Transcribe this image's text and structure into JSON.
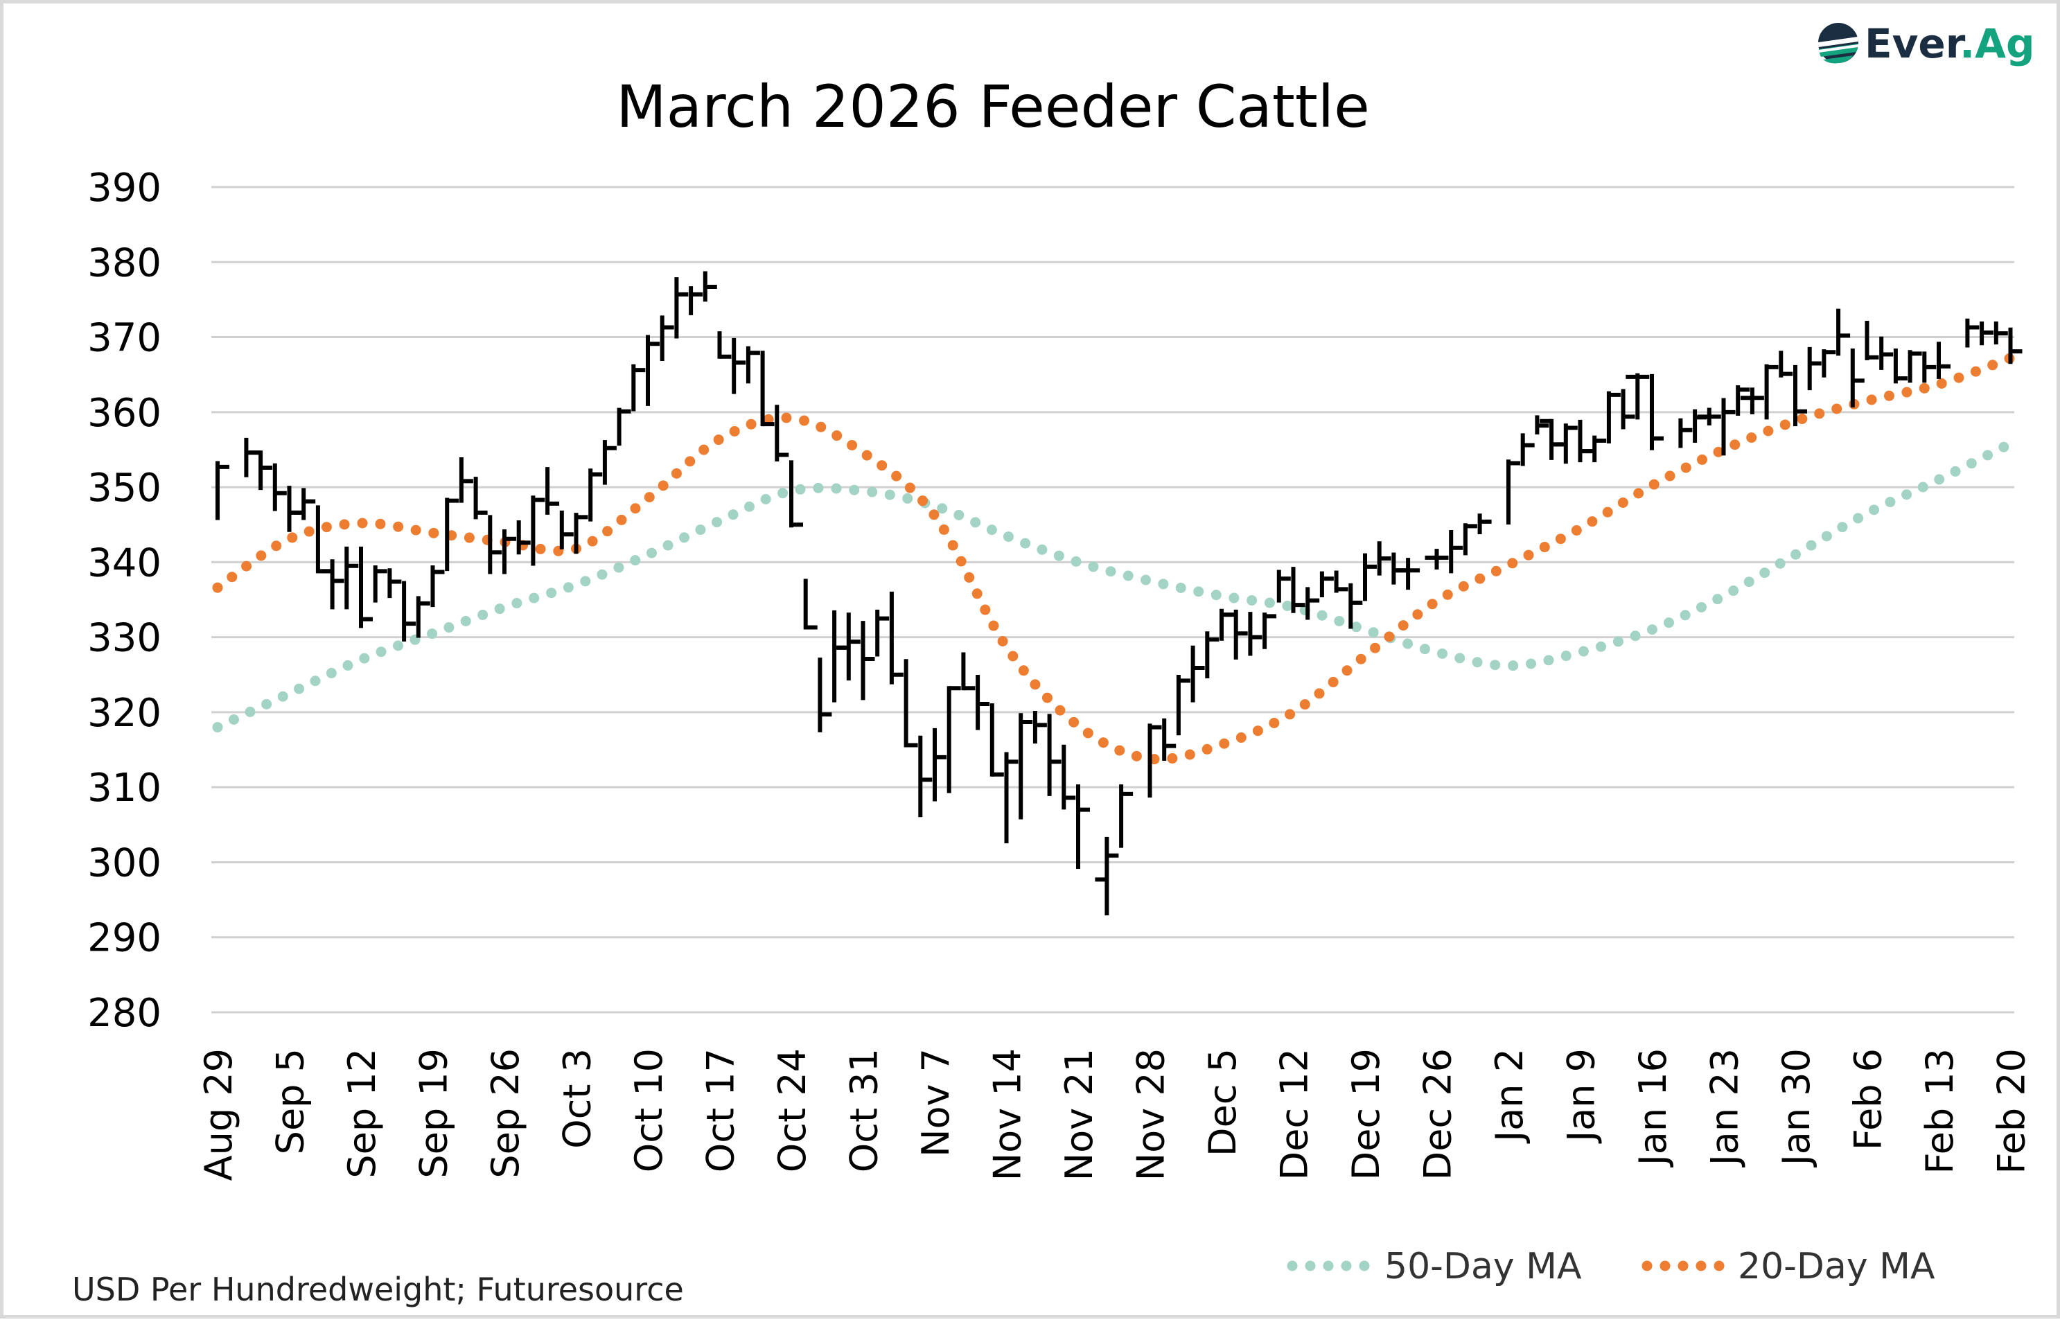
{
  "logo": {
    "parts": [
      "Ever",
      ".Ag"
    ],
    "colors": {
      "dark": "#1b2d40",
      "accent": "#13a37e"
    }
  },
  "chart_data": {
    "type": "ohlc",
    "title": "March 2026 Feeder Cattle",
    "footnote": "USD Per Hundredweight; Futuresource",
    "ylim": [
      280,
      390
    ],
    "y_ticks": [
      390,
      380,
      370,
      360,
      350,
      340,
      330,
      320,
      310,
      300,
      290,
      280
    ],
    "grid": true,
    "legend_position": "bottom-right",
    "x_ticks": [
      "Aug 29",
      "Sep 5",
      "Sep 12",
      "Sep 19",
      "Sep 26",
      "Oct 3",
      "Oct 10",
      "Oct 17",
      "Oct 24",
      "Oct 31",
      "Nov 7",
      "Nov 14",
      "Nov 21",
      "Nov 28",
      "Dec 5",
      "Dec 12",
      "Dec 19",
      "Dec 26",
      "Jan 2",
      "Jan 9",
      "Jan 16",
      "Jan 23",
      "Jan 30",
      "Feb 6",
      "Feb 13",
      "Feb 20"
    ],
    "bar_fields": [
      "open",
      "high",
      "low",
      "close"
    ],
    "bars_by_week_mon_to_fri": [
      [
        null,
        null,
        null,
        null,
        [
          null,
          353.2,
          345.9,
          352.7
        ]
      ],
      [
        null,
        [
          null,
          356.3,
          351.6,
          354.6
        ],
        [
          354.6,
          354.6,
          349.9,
          352.6
        ],
        [
          null,
          352.9,
          347.1,
          349.2
        ],
        [
          null,
          349.9,
          344.3,
          346.6
        ]
      ],
      [
        [
          346.6,
          349.6,
          345.9,
          348.1
        ],
        [
          null,
          347.3,
          338.8,
          338.8
        ],
        [
          338.8,
          340.1,
          334.0,
          337.5
        ],
        [
          null,
          341.8,
          334.0,
          339.5
        ],
        [
          null,
          341.8,
          331.5,
          332.4
        ]
      ],
      [
        [
          null,
          339.3,
          334.9,
          338.8
        ],
        [
          null,
          338.9,
          335.5,
          337.4
        ],
        [
          null,
          337.2,
          329.7,
          331.8
        ],
        [
          null,
          335.2,
          330.2,
          334.5
        ],
        [
          null,
          339.3,
          334.3,
          338.7
        ]
      ],
      [
        [
          null,
          348.3,
          339.1,
          348.2
        ],
        [
          null,
          353.7,
          348.2,
          350.8
        ],
        [
          null,
          351.1,
          346.0,
          346.6
        ],
        [
          null,
          346.0,
          338.7,
          341.3
        ],
        [
          null,
          344.1,
          338.7,
          343.1
        ]
      ],
      [
        [
          null,
          345.3,
          341.3,
          342.6
        ],
        [
          null,
          348.6,
          339.8,
          348.3
        ],
        [
          null,
          352.4,
          346.6,
          347.8
        ],
        [
          null,
          346.6,
          342.0,
          343.7
        ],
        [
          null,
          346.3,
          341.4,
          346.0
        ]
      ],
      [
        [
          null,
          352.2,
          345.7,
          351.7
        ],
        [
          null,
          356.0,
          350.6,
          355.2
        ],
        [
          null,
          360.3,
          355.8,
          360.1
        ],
        [
          null,
          366.1,
          360.4,
          365.6
        ],
        [
          null,
          370.0,
          361.1,
          369.1
        ]
      ],
      [
        [
          null,
          372.6,
          367.1,
          371.3
        ],
        [
          null,
          377.7,
          370.1,
          375.7
        ],
        [
          null,
          376.5,
          373.2,
          375.7
        ],
        [
          null,
          378.5,
          375.0,
          376.7
        ],
        [
          null,
          370.5,
          367.4,
          367.4
        ]
      ],
      [
        [
          null,
          369.6,
          362.7,
          366.6
        ],
        [
          null,
          368.5,
          364.1,
          367.9
        ],
        [
          null,
          367.9,
          358.4,
          358.4
        ],
        [
          null,
          360.7,
          353.7,
          354.3
        ],
        [
          null,
          353.3,
          344.9,
          345.0
        ]
      ],
      [
        [
          null,
          337.5,
          331.3,
          331.3
        ],
        [
          null,
          327.0,
          317.6,
          319.7
        ],
        [
          null,
          333.3,
          321.6,
          328.6
        ],
        [
          328.6,
          333.0,
          324.5,
          329.4
        ],
        [
          null,
          331.9,
          321.9,
          327.1
        ]
      ],
      [
        [
          null,
          333.4,
          327.7,
          332.5
        ],
        [
          null,
          335.8,
          324.0,
          325.0
        ],
        [
          null,
          326.8,
          315.6,
          315.6
        ],
        [
          null,
          316.6,
          306.3,
          311.0
        ],
        [
          null,
          317.6,
          308.4,
          314.0
        ]
      ],
      [
        [
          null,
          323.2,
          309.5,
          323.2
        ],
        [
          null,
          327.7,
          323.2,
          323.2
        ],
        [
          null,
          324.7,
          317.9,
          321.1
        ],
        [
          null,
          320.9,
          311.7,
          311.7
        ],
        [
          null,
          314.4,
          302.8,
          313.4
        ]
      ],
      [
        [
          null,
          319.6,
          306.0,
          318.7
        ],
        [
          null,
          319.9,
          316.1,
          318.3
        ],
        [
          null,
          319.5,
          309.1,
          313.4
        ],
        [
          null,
          315.4,
          307.3,
          308.6
        ],
        [
          null,
          310.1,
          299.4,
          307.0
        ]
      ],
      [
        null,
        [
          297.7,
          303.1,
          293.2,
          300.9
        ],
        [
          null,
          310.1,
          302.2,
          309.1
        ],
        null,
        [
          null,
          318.2,
          308.9,
          318.0
        ]
      ],
      [
        [
          null,
          318.9,
          313.8,
          315.5
        ],
        [
          null,
          324.7,
          317.2,
          324.2
        ],
        [
          null,
          328.6,
          321.6,
          325.9
        ],
        [
          null,
          330.5,
          324.8,
          329.7
        ],
        [
          null,
          333.5,
          329.8,
          333.0
        ]
      ],
      [
        [
          333.0,
          333.4,
          327.3,
          330.5
        ],
        [
          null,
          333.1,
          327.8,
          330.0
        ],
        [
          null,
          333.0,
          328.7,
          332.8
        ],
        [
          null,
          338.7,
          334.9,
          337.8
        ],
        [
          null,
          339.1,
          333.5,
          334.3
        ]
      ],
      [
        [
          null,
          336.4,
          332.6,
          334.9
        ],
        [
          null,
          338.5,
          335.6,
          337.8
        ],
        [
          null,
          338.6,
          336.2,
          336.4
        ],
        [
          null,
          336.9,
          331.4,
          334.6
        ],
        [
          null,
          340.9,
          335.1,
          339.4
        ]
      ],
      [
        [
          null,
          342.5,
          338.5,
          340.5
        ],
        [
          null,
          341.0,
          337.3,
          338.9
        ],
        [
          338.9,
          340.3,
          336.6,
          338.9
        ],
        null,
        [
          340.6,
          341.5,
          339.3,
          340.6
        ]
      ],
      [
        [
          null,
          344.0,
          338.8,
          341.9
        ],
        [
          null,
          344.9,
          341.2,
          344.8
        ],
        [
          null,
          346.2,
          344.0,
          345.4
        ],
        null,
        [
          null,
          353.4,
          345.3,
          353.2
        ]
      ],
      [
        [
          null,
          356.9,
          353.1,
          355.6
        ],
        [
          null,
          359.3,
          357.3,
          358.2
        ],
        [
          358.8,
          358.8,
          353.9,
          355.7
        ],
        [
          355.7,
          358.2,
          353.4,
          357.9
        ],
        [
          null,
          358.7,
          353.6,
          354.8
        ]
      ],
      [
        [
          354.8,
          356.6,
          353.6,
          356.2
        ],
        [
          null,
          362.5,
          356.1,
          362.3
        ],
        [
          null,
          362.8,
          358.0,
          359.4
        ],
        [
          364.7,
          364.9,
          359.3,
          364.7
        ],
        [
          null,
          364.8,
          355.2,
          356.5
        ]
      ],
      [
        null,
        [
          null,
          358.9,
          355.5,
          357.6
        ],
        [
          null,
          360.1,
          356.2,
          359.3
        ],
        [
          359.4,
          360.3,
          358.5,
          359.4
        ],
        [
          null,
          361.6,
          354.5,
          360.0
        ]
      ],
      [
        [
          null,
          363.3,
          359.8,
          363.0
        ],
        [
          361.9,
          363.0,
          360.0,
          361.9
        ],
        [
          null,
          366.1,
          359.3,
          366.0
        ],
        [
          null,
          367.9,
          364.9,
          365.1
        ],
        [
          null,
          366.0,
          358.4,
          360.1
        ]
      ],
      [
        [
          null,
          368.4,
          363.2,
          366.5
        ],
        [
          null,
          368.1,
          364.9,
          368.0
        ],
        [
          null,
          373.5,
          367.8,
          370.2
        ],
        [
          null,
          368.2,
          360.9,
          364.2
        ],
        [
          null,
          371.9,
          367.2,
          367.3
        ]
      ],
      [
        [
          null,
          369.8,
          365.9,
          367.7
        ],
        [
          null,
          368.2,
          364.1,
          364.5
        ],
        [
          null,
          368.0,
          364.2,
          367.8
        ],
        [
          null,
          367.8,
          364.2,
          366.0
        ],
        [
          null,
          369.1,
          364.7,
          366.1
        ]
      ],
      [
        null,
        [
          null,
          372.2,
          368.9,
          371.3
        ],
        [
          null,
          371.8,
          369.2,
          370.6
        ],
        [
          null,
          371.8,
          369.3,
          370.5
        ],
        [
          null,
          371.0,
          366.7,
          368.1
        ]
      ]
    ],
    "series": [
      {
        "name": "50-Day MA",
        "color": "#a3d3c4",
        "style": "dotted",
        "weekly_values": [
          318.0,
          322.5,
          327.0,
          330.5,
          334.0,
          337.0,
          341.0,
          345.5,
          349.5,
          349.5,
          347.5,
          343.5,
          340.0,
          337.5,
          335.5,
          334.0,
          331.0,
          328.0,
          326.2,
          328.0,
          331.0,
          335.5,
          341.0,
          346.5,
          351.0,
          355.8
        ]
      },
      {
        "name": "20-Day MA",
        "color": "#ed7d31",
        "style": "dotted",
        "weekly_values": [
          336.6,
          343.1,
          345.2,
          343.9,
          342.7,
          341.8,
          348.5,
          356.4,
          359.2,
          354.6,
          346.2,
          328.7,
          318.2,
          313.8,
          315.7,
          320.0,
          327.5,
          334.8,
          339.6,
          344.5,
          350.2,
          355.0,
          358.8,
          361.5,
          363.7,
          367.2
        ]
      }
    ],
    "bar_color": "#000000"
  }
}
